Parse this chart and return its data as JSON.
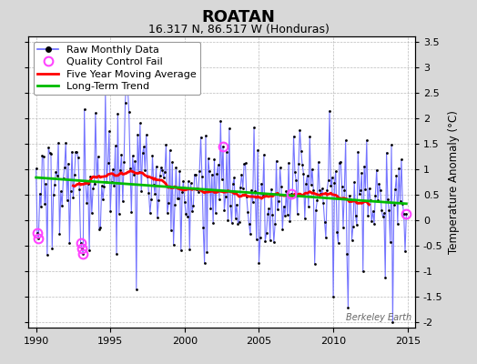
{
  "title": "ROATAN",
  "subtitle": "16.317 N, 86.517 W (Honduras)",
  "ylabel": "Temperature Anomaly (°C)",
  "watermark": "Berkeley Earth",
  "xlim": [
    1989.5,
    2015.5
  ],
  "ylim": [
    -2.1,
    3.6
  ],
  "yticks": [
    -2,
    -1.5,
    -1,
    -0.5,
    0,
    0.5,
    1,
    1.5,
    2,
    2.5,
    3,
    3.5
  ],
  "xticks": [
    1990,
    1995,
    2000,
    2005,
    2010,
    2015
  ],
  "bg_color": "#d8d8d8",
  "plot_bg_color": "#ffffff",
  "raw_line_color": "#6666ff",
  "raw_dot_color": "#000000",
  "ma_color": "#ff0000",
  "trend_color": "#00bb00",
  "qc_color": "#ff44ff",
  "title_fontsize": 13,
  "subtitle_fontsize": 9,
  "axis_fontsize": 8,
  "legend_fontsize": 8
}
